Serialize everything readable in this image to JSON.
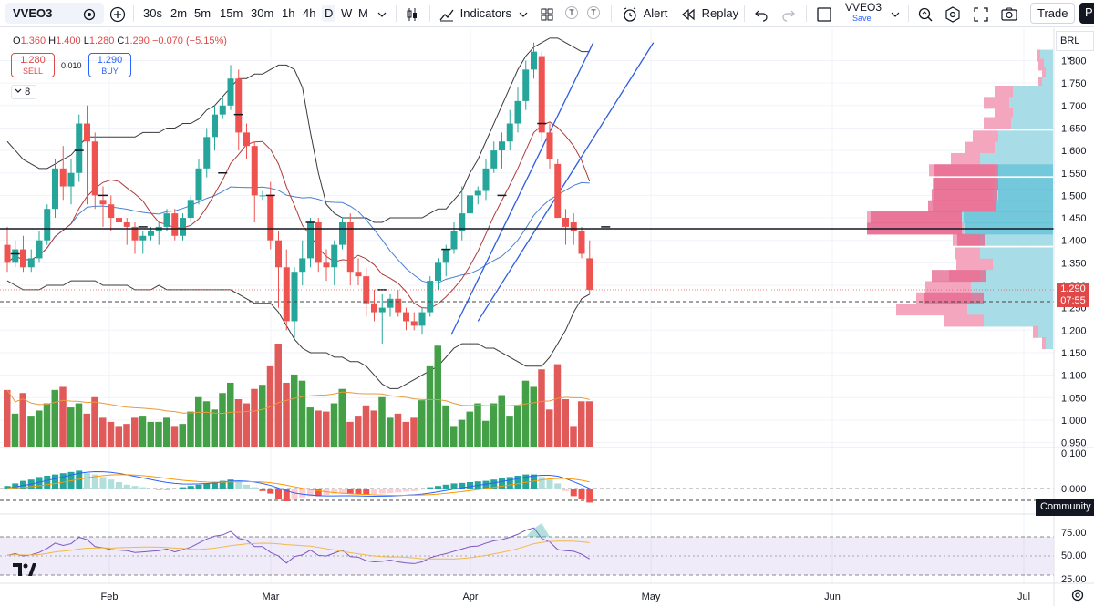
{
  "toolbar": {
    "symbol": "VVEO3",
    "intervals": [
      "30s",
      "2m",
      "5m",
      "15m",
      "30m",
      "1h",
      "4h",
      "D",
      "W",
      "M"
    ],
    "active_interval": "D",
    "indicators_label": "Indicators",
    "alert_label": "Alert",
    "replay_label": "Replay",
    "layout_name": "VVEO3",
    "layout_save": "Save",
    "trade_label": "Trade",
    "publish_label": "P",
    "t_label_1": "T",
    "t_label_2": "T"
  },
  "legend": {
    "o_label": "O",
    "o_value": "1.360",
    "h_label": "H",
    "h_value": "1.400",
    "l_label": "L",
    "l_value": "1.280",
    "c_label": "C",
    "c_value": "1.290",
    "change": "−0.070 (−5.15%)",
    "sell_price": "1.280",
    "sell_label": "SELL",
    "spread": "0.010",
    "buy_price": "1.290",
    "buy_label": "BUY",
    "collapsed_count": "8"
  },
  "price_axis": {
    "currency": "BRL",
    "ticks": [
      "1.800",
      "1.750",
      "1.700",
      "1.650",
      "1.600",
      "1.550",
      "1.500",
      "1.450",
      "1.400",
      "1.350",
      "1.300",
      "1.250",
      "1.200",
      "1.150",
      "1.100",
      "1.050",
      "1.000",
      "0.950"
    ],
    "last_price": "1.290",
    "countdown": "07:55"
  },
  "macd_axis": {
    "ticks": [
      "0.100",
      "0.000"
    ]
  },
  "rsi_axis": {
    "ticks": [
      "75.00",
      "50.00",
      "25.00"
    ]
  },
  "community_label": "Community",
  "time_axis": {
    "labels": [
      "Feb",
      "Mar",
      "Apr",
      "May",
      "Jun",
      "Jul"
    ]
  },
  "colors": {
    "up": "#26a69a",
    "down": "#ef5350",
    "vol_up": "#43a047",
    "vol_down": "#e05a5a",
    "accent": "#2962ff",
    "macd_line": "#2962ff",
    "signal_line": "#ff9800",
    "rsi_line": "#7e57c2"
  },
  "chart_data": {
    "type": "candlestick",
    "ohlc": [
      [
        1.39,
        1.43,
        1.33,
        1.35
      ],
      [
        1.35,
        1.4,
        1.34,
        1.38
      ],
      [
        1.38,
        1.41,
        1.33,
        1.34
      ],
      [
        1.34,
        1.38,
        1.33,
        1.36
      ],
      [
        1.36,
        1.42,
        1.35,
        1.4
      ],
      [
        1.4,
        1.48,
        1.39,
        1.47
      ],
      [
        1.47,
        1.58,
        1.45,
        1.56
      ],
      [
        1.56,
        1.61,
        1.49,
        1.52
      ],
      [
        1.52,
        1.58,
        1.48,
        1.55
      ],
      [
        1.55,
        1.68,
        1.53,
        1.66
      ],
      [
        1.66,
        1.7,
        1.48,
        1.62
      ],
      [
        1.62,
        1.64,
        1.47,
        1.5
      ],
      [
        1.49,
        1.52,
        1.43,
        1.48
      ],
      [
        1.48,
        1.5,
        1.42,
        1.45
      ],
      [
        1.45,
        1.48,
        1.43,
        1.44
      ],
      [
        1.44,
        1.45,
        1.39,
        1.43
      ],
      [
        1.43,
        1.44,
        1.37,
        1.4
      ],
      [
        1.4,
        1.42,
        1.37,
        1.41
      ],
      [
        1.41,
        1.43,
        1.4,
        1.42
      ],
      [
        1.42,
        1.44,
        1.39,
        1.43
      ],
      [
        1.43,
        1.47,
        1.42,
        1.46
      ],
      [
        1.46,
        1.47,
        1.4,
        1.41
      ],
      [
        1.41,
        1.46,
        1.4,
        1.45
      ],
      [
        1.45,
        1.5,
        1.44,
        1.49
      ],
      [
        1.49,
        1.58,
        1.48,
        1.56
      ],
      [
        1.56,
        1.65,
        1.54,
        1.63
      ],
      [
        1.63,
        1.7,
        1.6,
        1.68
      ],
      [
        1.68,
        1.72,
        1.67,
        1.7
      ],
      [
        1.7,
        1.79,
        1.69,
        1.76
      ],
      [
        1.76,
        1.78,
        1.6,
        1.64
      ],
      [
        1.64,
        1.66,
        1.58,
        1.61
      ],
      [
        1.61,
        1.62,
        1.44,
        1.5
      ],
      [
        1.5,
        1.51,
        1.49,
        1.5
      ],
      [
        1.5,
        1.53,
        1.38,
        1.4
      ],
      [
        1.4,
        1.42,
        1.25,
        1.34
      ],
      [
        1.34,
        1.38,
        1.2,
        1.22
      ],
      [
        1.22,
        1.34,
        1.18,
        1.33
      ],
      [
        1.33,
        1.4,
        1.3,
        1.36
      ],
      [
        1.36,
        1.45,
        1.34,
        1.44
      ],
      [
        1.44,
        1.45,
        1.33,
        1.35
      ],
      [
        1.35,
        1.38,
        1.31,
        1.34
      ],
      [
        1.34,
        1.4,
        1.3,
        1.39
      ],
      [
        1.39,
        1.45,
        1.38,
        1.44
      ],
      [
        1.44,
        1.46,
        1.3,
        1.33
      ],
      [
        1.33,
        1.36,
        1.3,
        1.32
      ],
      [
        1.32,
        1.34,
        1.23,
        1.26
      ],
      [
        1.26,
        1.29,
        1.22,
        1.24
      ],
      [
        1.24,
        1.28,
        1.17,
        1.25
      ],
      [
        1.25,
        1.28,
        1.23,
        1.27
      ],
      [
        1.27,
        1.29,
        1.23,
        1.24
      ],
      [
        1.24,
        1.25,
        1.2,
        1.22
      ],
      [
        1.22,
        1.24,
        1.2,
        1.21
      ],
      [
        1.21,
        1.25,
        1.19,
        1.24
      ],
      [
        1.24,
        1.32,
        1.23,
        1.31
      ],
      [
        1.31,
        1.36,
        1.29,
        1.35
      ],
      [
        1.35,
        1.39,
        1.32,
        1.38
      ],
      [
        1.38,
        1.44,
        1.37,
        1.42
      ],
      [
        1.42,
        1.52,
        1.4,
        1.46
      ],
      [
        1.46,
        1.53,
        1.44,
        1.5
      ],
      [
        1.5,
        1.52,
        1.48,
        1.51
      ],
      [
        1.51,
        1.58,
        1.49,
        1.56
      ],
      [
        1.56,
        1.62,
        1.55,
        1.6
      ],
      [
        1.6,
        1.64,
        1.56,
        1.62
      ],
      [
        1.62,
        1.69,
        1.6,
        1.66
      ],
      [
        1.66,
        1.74,
        1.64,
        1.71
      ],
      [
        1.71,
        1.8,
        1.69,
        1.78
      ],
      [
        1.78,
        1.84,
        1.76,
        1.82
      ],
      [
        1.81,
        1.82,
        1.62,
        1.64
      ],
      [
        1.64,
        1.66,
        1.56,
        1.58
      ],
      [
        1.57,
        1.58,
        1.45,
        1.45
      ],
      [
        1.45,
        1.47,
        1.39,
        1.43
      ],
      [
        1.44,
        1.46,
        1.39,
        1.42
      ],
      [
        1.42,
        1.43,
        1.36,
        1.37
      ],
      [
        1.36,
        1.4,
        1.28,
        1.29
      ]
    ],
    "volume_relative": [
      0.55,
      0.32,
      0.52,
      0.3,
      0.35,
      0.42,
      0.55,
      0.58,
      0.38,
      0.42,
      0.32,
      0.48,
      0.28,
      0.24,
      0.2,
      0.22,
      0.28,
      0.3,
      0.24,
      0.24,
      0.28,
      0.2,
      0.22,
      0.34,
      0.48,
      0.44,
      0.36,
      0.52,
      0.62,
      0.46,
      0.42,
      0.56,
      0.6,
      0.78,
      1.0,
      0.62,
      0.7,
      0.64,
      0.38,
      0.35,
      0.34,
      0.42,
      0.56,
      0.24,
      0.3,
      0.4,
      0.35,
      0.48,
      0.28,
      0.32,
      0.24,
      0.28,
      0.45,
      0.78,
      0.98,
      0.4,
      0.2,
      0.26,
      0.34,
      0.42,
      0.25,
      0.42,
      0.5,
      0.3,
      0.4,
      0.64,
      0.58,
      0.75,
      0.36,
      0.8,
      0.46,
      0.2,
      0.44,
      0.44
    ],
    "bollinger_upper": [
      1.62,
      1.6,
      1.58,
      1.57,
      1.56,
      1.56,
      1.57,
      1.58,
      1.59,
      1.61,
      1.63,
      1.63,
      1.63,
      1.63,
      1.63,
      1.63,
      1.63,
      1.64,
      1.64,
      1.64,
      1.65,
      1.65,
      1.66,
      1.66,
      1.67,
      1.69,
      1.7,
      1.72,
      1.74,
      1.76,
      1.76,
      1.77,
      1.77,
      1.78,
      1.79,
      1.79,
      1.78,
      1.74,
      1.64,
      1.55,
      1.48,
      1.46,
      1.45,
      1.45,
      1.45,
      1.45,
      1.44,
      1.44,
      1.45,
      1.45,
      1.45,
      1.45,
      1.45,
      1.46,
      1.47,
      1.47,
      1.49,
      1.51,
      1.55,
      1.58,
      1.62,
      1.66,
      1.7,
      1.74,
      1.78,
      1.81,
      1.83,
      1.84,
      1.85,
      1.85,
      1.84,
      1.83,
      1.82,
      1.82
    ],
    "bollinger_lower": [
      1.31,
      1.3,
      1.29,
      1.29,
      1.29,
      1.3,
      1.3,
      1.3,
      1.31,
      1.31,
      1.31,
      1.31,
      1.3,
      1.3,
      1.3,
      1.3,
      1.29,
      1.29,
      1.29,
      1.3,
      1.29,
      1.29,
      1.29,
      1.29,
      1.29,
      1.29,
      1.29,
      1.29,
      1.29,
      1.28,
      1.27,
      1.26,
      1.26,
      1.26,
      1.24,
      1.21,
      1.18,
      1.16,
      1.15,
      1.15,
      1.15,
      1.14,
      1.14,
      1.13,
      1.13,
      1.12,
      1.1,
      1.08,
      1.07,
      1.07,
      1.08,
      1.09,
      1.1,
      1.11,
      1.12,
      1.14,
      1.16,
      1.17,
      1.17,
      1.17,
      1.16,
      1.16,
      1.15,
      1.14,
      1.13,
      1.12,
      1.12,
      1.12,
      1.14,
      1.17,
      1.2,
      1.24,
      1.27,
      1.28
    ]
  }
}
